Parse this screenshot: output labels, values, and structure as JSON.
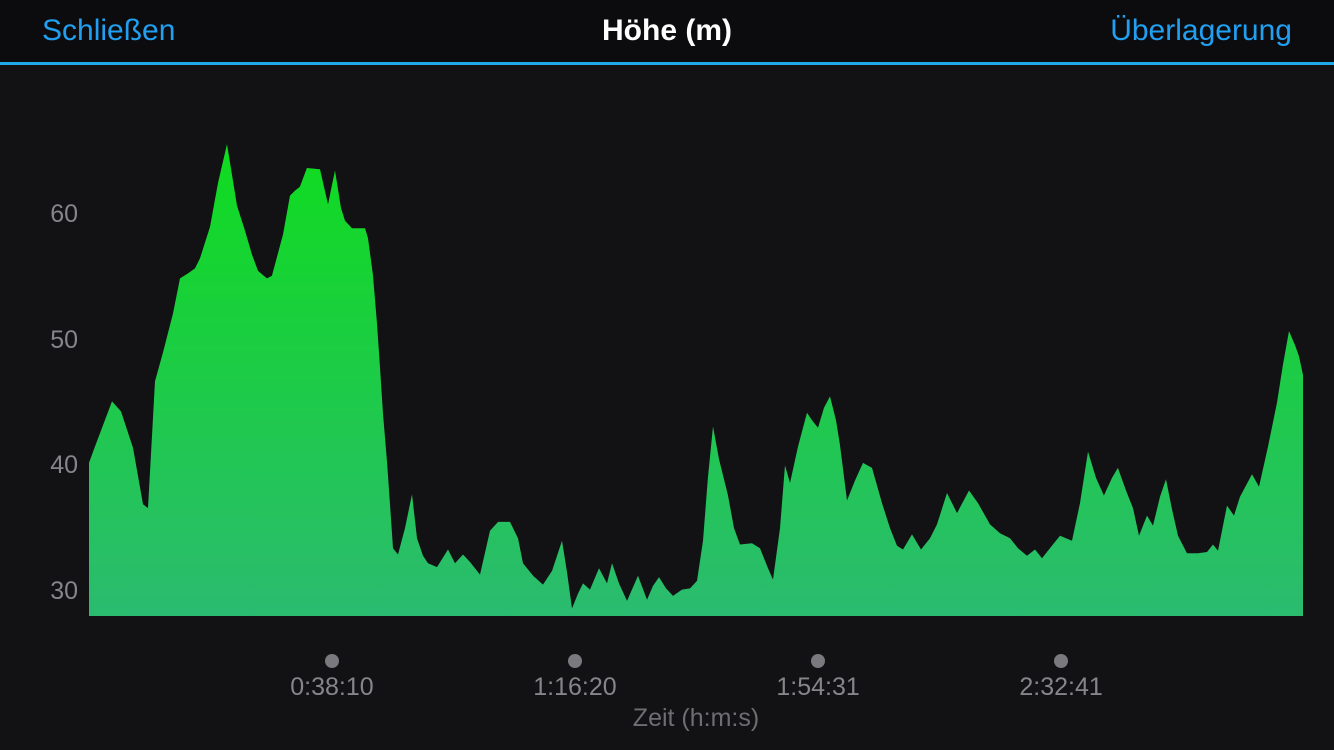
{
  "header": {
    "close_label": "Schließen",
    "title": "Höhe (m)",
    "overlay_label": "Überlagerung"
  },
  "colors": {
    "background": "#121214",
    "header_background": "#0c0c0e",
    "accent_blue": "#219ff1",
    "divider_blue": "#1fa9e9",
    "gradient_top": "#0fdc1e",
    "gradient_bottom": "#2bbb70",
    "tick_gray": "#85858a",
    "dot_gray": "#7a7a7e",
    "axis_title_gray": "#6e6e72",
    "title_white": "#ffffff"
  },
  "chart_data": {
    "type": "area",
    "title": "Höhe (m)",
    "xlabel": "Zeit (h:m:s)",
    "ylabel": "Höhe (m)",
    "unit": "m",
    "grid": false,
    "legend": false,
    "ylim": [
      28,
      67
    ],
    "xlim_seconds": [
      0,
      11441
    ],
    "yticks": [
      "60",
      "50",
      "40",
      "30"
    ],
    "ytick_values": [
      60,
      50,
      40,
      30
    ],
    "xticks": [
      {
        "seconds": 2290,
        "label": "0:38:10"
      },
      {
        "seconds": 4580,
        "label": "1:16:20"
      },
      {
        "seconds": 6871,
        "label": "1:54:31"
      },
      {
        "seconds": 9161,
        "label": "2:32:41"
      }
    ],
    "series": [
      {
        "name": "Höhe (m)",
        "points_time_s_elevation_m": [
          [
            0,
            40.2
          ],
          [
            47,
            41.3
          ],
          [
            217,
            45.1
          ],
          [
            302,
            44.3
          ],
          [
            415,
            41.4
          ],
          [
            509,
            36.9
          ],
          [
            556,
            36.6
          ],
          [
            622,
            46.7
          ],
          [
            697,
            49.0
          ],
          [
            792,
            52.1
          ],
          [
            858,
            54.9
          ],
          [
            933,
            55.3
          ],
          [
            999,
            55.7
          ],
          [
            1046,
            56.5
          ],
          [
            1140,
            59.0
          ],
          [
            1216,
            62.5
          ],
          [
            1301,
            65.6
          ],
          [
            1395,
            60.7
          ],
          [
            1470,
            58.7
          ],
          [
            1536,
            56.8
          ],
          [
            1593,
            55.5
          ],
          [
            1677,
            54.9
          ],
          [
            1724,
            55.1
          ],
          [
            1828,
            58.4
          ],
          [
            1894,
            61.5
          ],
          [
            1941,
            61.9
          ],
          [
            1988,
            62.2
          ],
          [
            2054,
            63.7
          ],
          [
            2177,
            63.6
          ],
          [
            2252,
            60.8
          ],
          [
            2318,
            63.5
          ],
          [
            2375,
            60.5
          ],
          [
            2413,
            59.5
          ],
          [
            2479,
            58.9
          ],
          [
            2601,
            58.9
          ],
          [
            2629,
            58.1
          ],
          [
            2676,
            55.2
          ],
          [
            2714,
            51.3
          ],
          [
            2742,
            47.8
          ],
          [
            2771,
            44.1
          ],
          [
            2808,
            40.3
          ],
          [
            2837,
            36.9
          ],
          [
            2865,
            33.4
          ],
          [
            2912,
            32.9
          ],
          [
            2978,
            35.0
          ],
          [
            3044,
            37.7
          ],
          [
            3091,
            34.2
          ],
          [
            3148,
            32.8
          ],
          [
            3195,
            32.2
          ],
          [
            3280,
            31.9
          ],
          [
            3383,
            33.3
          ],
          [
            3449,
            32.2
          ],
          [
            3525,
            32.9
          ],
          [
            3591,
            32.3
          ],
          [
            3685,
            31.3
          ],
          [
            3779,
            34.8
          ],
          [
            3855,
            35.5
          ],
          [
            3968,
            35.5
          ],
          [
            4043,
            34.2
          ],
          [
            4090,
            32.2
          ],
          [
            4185,
            31.2
          ],
          [
            4279,
            30.5
          ],
          [
            4364,
            31.6
          ],
          [
            4458,
            34.0
          ],
          [
            4505,
            31.5
          ],
          [
            4552,
            28.6
          ],
          [
            4609,
            29.8
          ],
          [
            4656,
            30.6
          ],
          [
            4722,
            30.1
          ],
          [
            4806,
            31.8
          ],
          [
            4882,
            30.6
          ],
          [
            4929,
            32.2
          ],
          [
            4995,
            30.6
          ],
          [
            5070,
            29.2
          ],
          [
            5174,
            31.2
          ],
          [
            5259,
            29.3
          ],
          [
            5315,
            30.4
          ],
          [
            5372,
            31.1
          ],
          [
            5438,
            30.2
          ],
          [
            5504,
            29.6
          ],
          [
            5589,
            30.1
          ],
          [
            5664,
            30.2
          ],
          [
            5730,
            30.8
          ],
          [
            5786,
            34.0
          ],
          [
            5833,
            39.0
          ],
          [
            5881,
            43.1
          ],
          [
            5937,
            40.5
          ],
          [
            6022,
            37.6
          ],
          [
            6079,
            35.0
          ],
          [
            6135,
            33.7
          ],
          [
            6248,
            33.8
          ],
          [
            6324,
            33.4
          ],
          [
            6399,
            31.8
          ],
          [
            6446,
            30.9
          ],
          [
            6512,
            35.0
          ],
          [
            6559,
            40.0
          ],
          [
            6606,
            38.6
          ],
          [
            6682,
            41.5
          ],
          [
            6767,
            44.2
          ],
          [
            6814,
            43.6
          ],
          [
            6870,
            43.0
          ],
          [
            6927,
            44.6
          ],
          [
            6983,
            45.5
          ],
          [
            7040,
            43.6
          ],
          [
            7078,
            41.6
          ],
          [
            7144,
            37.2
          ],
          [
            7219,
            38.8
          ],
          [
            7294,
            40.2
          ],
          [
            7379,
            39.8
          ],
          [
            7473,
            37.0
          ],
          [
            7549,
            35.0
          ],
          [
            7615,
            33.6
          ],
          [
            7671,
            33.3
          ],
          [
            7756,
            34.5
          ],
          [
            7841,
            33.3
          ],
          [
            7926,
            34.2
          ],
          [
            7992,
            35.3
          ],
          [
            8086,
            37.8
          ],
          [
            8180,
            36.2
          ],
          [
            8293,
            38.0
          ],
          [
            8378,
            37.0
          ],
          [
            8491,
            35.3
          ],
          [
            8585,
            34.6
          ],
          [
            8680,
            34.2
          ],
          [
            8755,
            33.4
          ],
          [
            8840,
            32.8
          ],
          [
            8915,
            33.3
          ],
          [
            8981,
            32.6
          ],
          [
            9075,
            33.6
          ],
          [
            9151,
            34.4
          ],
          [
            9264,
            34.0
          ],
          [
            9339,
            37.0
          ],
          [
            9415,
            41.1
          ],
          [
            9490,
            39.0
          ],
          [
            9565,
            37.6
          ],
          [
            9641,
            39.0
          ],
          [
            9697,
            39.8
          ],
          [
            9773,
            38.0
          ],
          [
            9839,
            36.6
          ],
          [
            9895,
            34.4
          ],
          [
            9971,
            36.0
          ],
          [
            10027,
            35.2
          ],
          [
            10093,
            37.5
          ],
          [
            10150,
            38.9
          ],
          [
            10206,
            36.5
          ],
          [
            10263,
            34.4
          ],
          [
            10348,
            33.0
          ],
          [
            10451,
            33.0
          ],
          [
            10536,
            33.1
          ],
          [
            10593,
            33.7
          ],
          [
            10640,
            33.2
          ],
          [
            10725,
            36.8
          ],
          [
            10791,
            36.0
          ],
          [
            10847,
            37.5
          ],
          [
            10960,
            39.3
          ],
          [
            11026,
            38.3
          ],
          [
            11111,
            41.5
          ],
          [
            11196,
            45.0
          ],
          [
            11252,
            48.0
          ],
          [
            11309,
            50.7
          ],
          [
            11365,
            49.6
          ],
          [
            11403,
            48.7
          ],
          [
            11441,
            47.2
          ]
        ]
      }
    ]
  }
}
